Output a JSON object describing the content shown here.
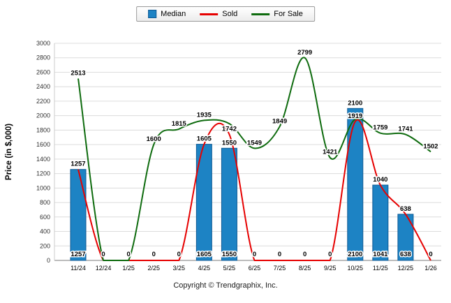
{
  "legend": {
    "items": [
      {
        "label": "Median",
        "color": "#1d83c4",
        "border": "#0f5a94",
        "type": "bar"
      },
      {
        "label": "Sold",
        "color": "#e60000",
        "type": "line"
      },
      {
        "label": "For Sale",
        "color": "#0e6b0e",
        "type": "line"
      }
    ]
  },
  "chart_data": {
    "type": "combo",
    "title": "",
    "xlabel": "",
    "ylabel": "Price (in $,000)",
    "ylim": [
      0,
      3000
    ],
    "ytick_step": 200,
    "ytick_labels": [
      "0",
      "200",
      "400",
      "600",
      "800",
      "1000",
      "1200",
      "1400",
      "1600",
      "1800",
      "2000",
      "2200",
      "2400",
      "2600",
      "2800",
      "3000"
    ],
    "grid": true,
    "legend_position": "top",
    "categories": [
      "11/24",
      "12/24",
      "1/25",
      "2/25",
      "3/25",
      "4/25",
      "5/25",
      "6/25",
      "7/25",
      "8/25",
      "9/25",
      "10/25",
      "11/25",
      "12/25",
      "1/26"
    ],
    "series": [
      {
        "name": "Median",
        "chart_type": "bar",
        "color": "#1d83c4",
        "border_color": "#0f5a94",
        "values": [
          1257,
          0,
          0,
          0,
          0,
          1605,
          1550,
          0,
          0,
          0,
          0,
          2100,
          1041,
          638,
          0
        ]
      },
      {
        "name": "Sold",
        "chart_type": "line",
        "color": "#e60000",
        "values": [
          1257,
          0,
          0,
          0,
          0,
          1605,
          1742,
          0,
          0,
          0,
          0,
          1919,
          1040,
          638,
          0
        ]
      },
      {
        "name": "For Sale",
        "chart_type": "line",
        "color": "#0e6b0e",
        "values": [
          2513,
          0,
          0,
          1600,
          1815,
          1935,
          1890,
          1549,
          1849,
          2799,
          1421,
          1950,
          1759,
          1741,
          1502
        ],
        "labels": [
          2513,
          0,
          0,
          1600,
          1815,
          1935,
          null,
          1549,
          1849,
          2799,
          1421,
          null,
          1759,
          1741,
          1502
        ]
      }
    ]
  },
  "footer": {
    "copyright": "Copyright © Trendgraphix, Inc."
  }
}
